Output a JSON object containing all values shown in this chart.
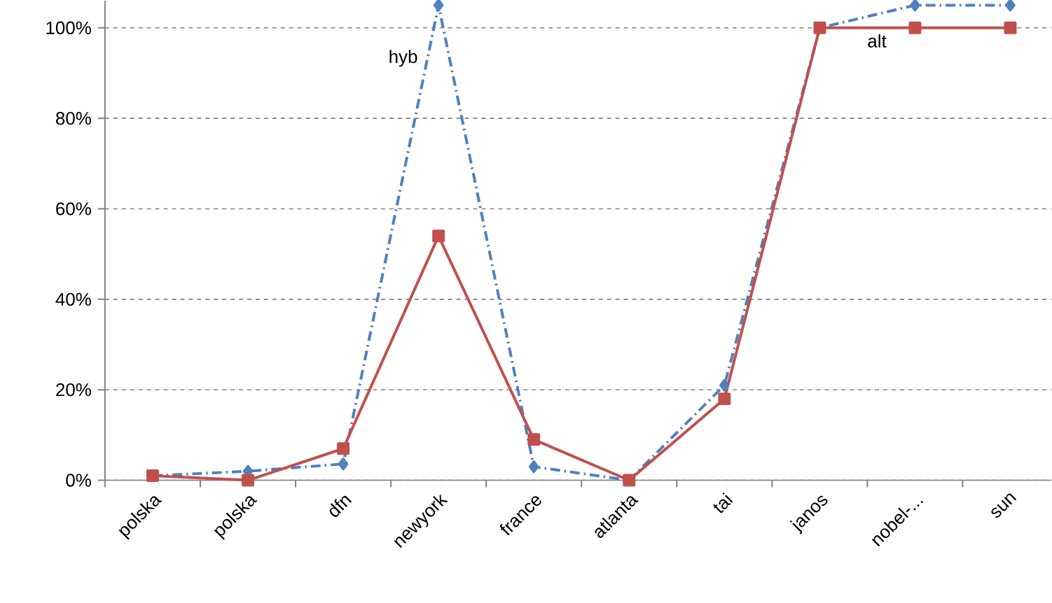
{
  "chart_data": {
    "type": "line",
    "categories": [
      "polska",
      "polska",
      "dfn",
      "newyork",
      "france",
      "atlanta",
      "tai",
      "janos",
      "nobel-...",
      "sun"
    ],
    "series": [
      {
        "name": "hyb",
        "color": "#4f81bd",
        "marker": "diamond",
        "line_style": "dashed",
        "values": [
          1,
          2,
          3.6,
          105,
          3,
          0,
          21,
          100,
          105,
          105
        ]
      },
      {
        "name": "alt",
        "color": "#c0504d",
        "marker": "square",
        "line_style": "solid",
        "values": [
          1,
          0,
          7,
          54,
          9,
          0,
          18,
          100,
          100,
          100
        ]
      }
    ],
    "ylim": [
      0,
      106
    ],
    "yticks": [
      {
        "value": 0,
        "label": "0%"
      },
      {
        "value": 20,
        "label": "20%"
      },
      {
        "value": 40,
        "label": "40%"
      },
      {
        "value": 60,
        "label": "60%"
      },
      {
        "value": 80,
        "label": "80%"
      },
      {
        "value": 100,
        "label": "100%"
      }
    ],
    "grid": "y"
  }
}
